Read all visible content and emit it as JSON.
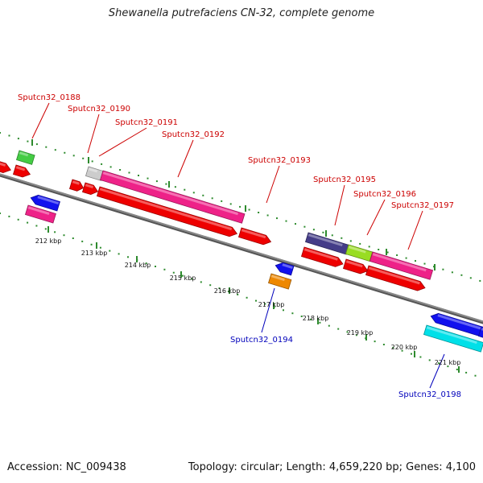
{
  "title": "Shewanella putrefaciens CN-32, complete genome",
  "footer": {
    "accession": "Accession: NC_009438",
    "summary": "Topology: circular; Length: 4,659,220 bp; Genes: 4,100"
  },
  "colors": {
    "backbone": "#888888",
    "tick": "#2e8b2e",
    "label_forward": "#cc0000",
    "label_reverse": "#0000bb",
    "red": "#ee0000",
    "magenta": "#ee2288",
    "green": "#44cc44",
    "blue": "#1111ee",
    "orange": "#ee8800",
    "cyan": "#00e0e8",
    "slate": "#443c88",
    "lime": "#99dd22",
    "gray": "#cccccc"
  },
  "scale_labels": [
    "212 kbp",
    "213 kbp",
    "214 kbp",
    "215 kbp",
    "216 kbp",
    "217 kbp",
    "218 kbp",
    "219 kbp",
    "220 kbp",
    "221 kbp"
  ],
  "gene_labels": [
    {
      "text": "Sputcn32_0188",
      "strand": "forward"
    },
    {
      "text": "Sputcn32_0190",
      "strand": "forward"
    },
    {
      "text": "Sputcn32_0191",
      "strand": "forward"
    },
    {
      "text": "Sputcn32_0192",
      "strand": "forward"
    },
    {
      "text": "Sputcn32_0193",
      "strand": "forward"
    },
    {
      "text": "Sputcn32_0195",
      "strand": "forward"
    },
    {
      "text": "Sputcn32_0196",
      "strand": "forward"
    },
    {
      "text": "Sputcn32_0197",
      "strand": "forward"
    },
    {
      "text": "Sputcn32_0194",
      "strand": "reverse"
    },
    {
      "text": "Sputcn32_0198",
      "strand": "reverse"
    }
  ]
}
